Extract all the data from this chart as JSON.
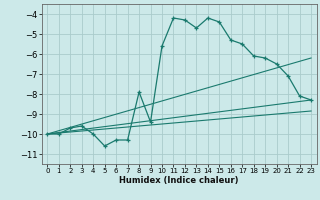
{
  "xlabel": "Humidex (Indice chaleur)",
  "xlim": [
    -0.5,
    23.5
  ],
  "ylim": [
    -11.5,
    -3.5
  ],
  "yticks": [
    -11,
    -10,
    -9,
    -8,
    -7,
    -6,
    -5,
    -4
  ],
  "xticks": [
    0,
    1,
    2,
    3,
    4,
    5,
    6,
    7,
    8,
    9,
    10,
    11,
    12,
    13,
    14,
    15,
    16,
    17,
    18,
    19,
    20,
    21,
    22,
    23
  ],
  "bg_color": "#cce9e9",
  "grid_color": "#aacccc",
  "line_color": "#1a7a6e",
  "line1_x": [
    0,
    1,
    2,
    3,
    4,
    5,
    6,
    7,
    8,
    9,
    10,
    11,
    12,
    13,
    14,
    15,
    16,
    17,
    18,
    19,
    20,
    21,
    22,
    23
  ],
  "line1_y": [
    -10,
    -10,
    -9.7,
    -9.6,
    -10,
    -10.6,
    -10.3,
    -10.3,
    -7.9,
    -9.4,
    -5.6,
    -4.2,
    -4.3,
    -4.7,
    -4.2,
    -4.4,
    -5.3,
    -5.5,
    -6.1,
    -6.2,
    -6.5,
    -7.1,
    -8.1,
    -8.3
  ],
  "line2_x": [
    0,
    23
  ],
  "line2_y": [
    -10,
    -8.3
  ],
  "line3_x": [
    0,
    23
  ],
  "line3_y": [
    -10,
    -6.2
  ],
  "line4_x": [
    0,
    23
  ],
  "line4_y": [
    -10,
    -8.85
  ]
}
